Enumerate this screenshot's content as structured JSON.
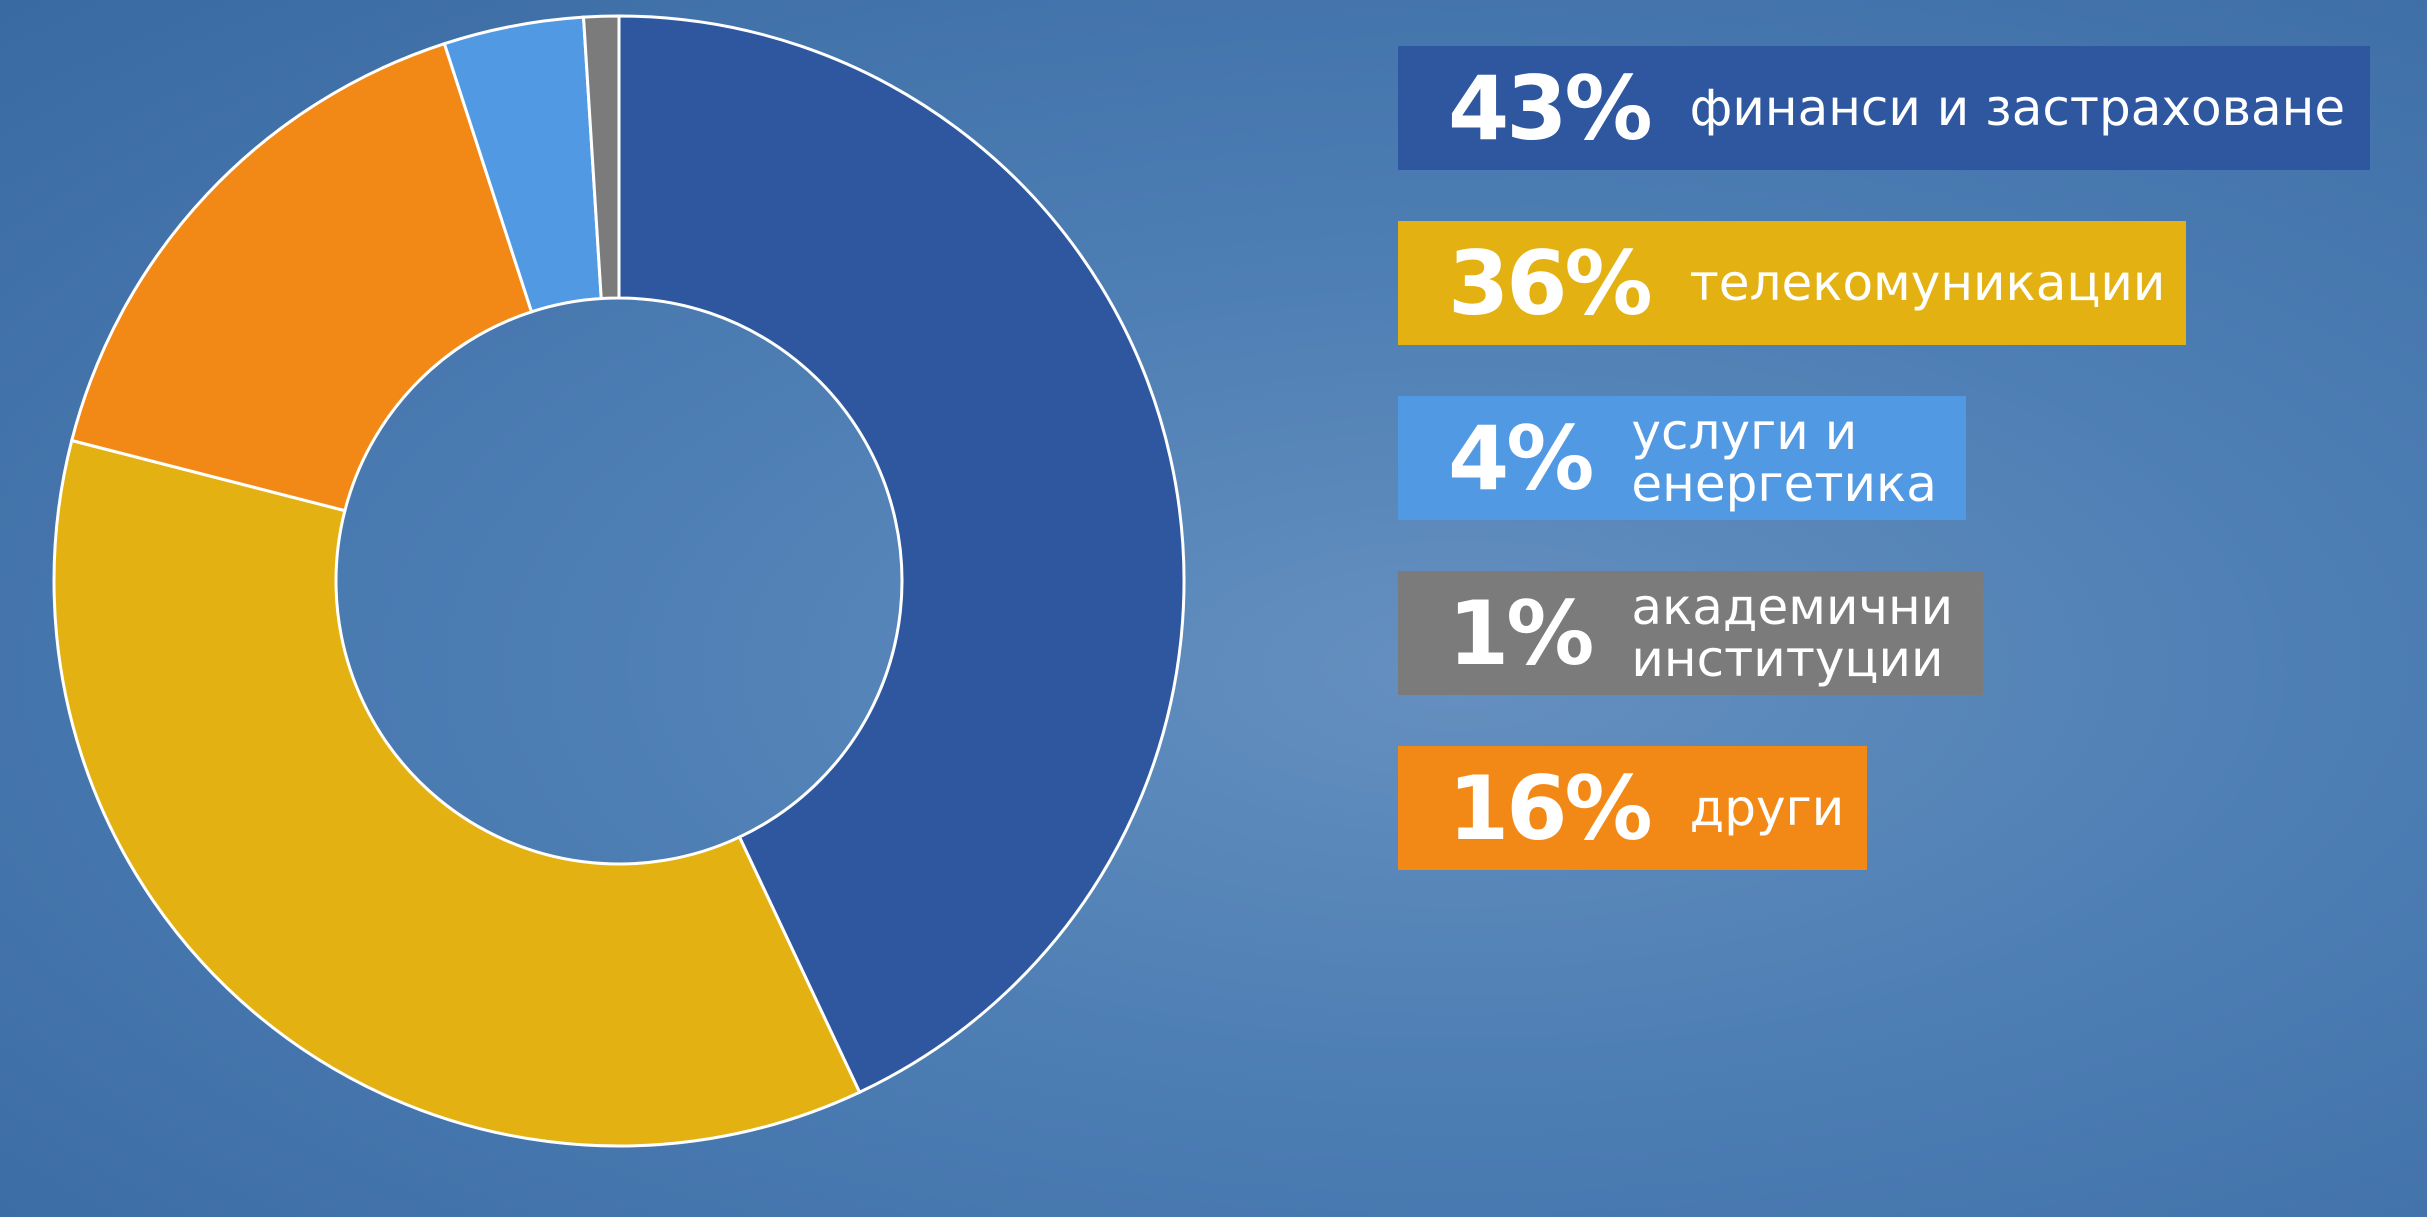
{
  "chart_data": {
    "type": "donut",
    "categories": [
      "финанси и застраховане",
      "телекомуникации",
      "услуги и енергетика",
      "академични институции",
      "други"
    ],
    "values": [
      43,
      36,
      4,
      1,
      16
    ],
    "value_labels": [
      "43%",
      "36%",
      "4%",
      "1%",
      "16%"
    ],
    "colors": [
      "#2e57a0",
      "#e3b111",
      "#5199e2",
      "#7b7b7b",
      "#f28916"
    ]
  }
}
